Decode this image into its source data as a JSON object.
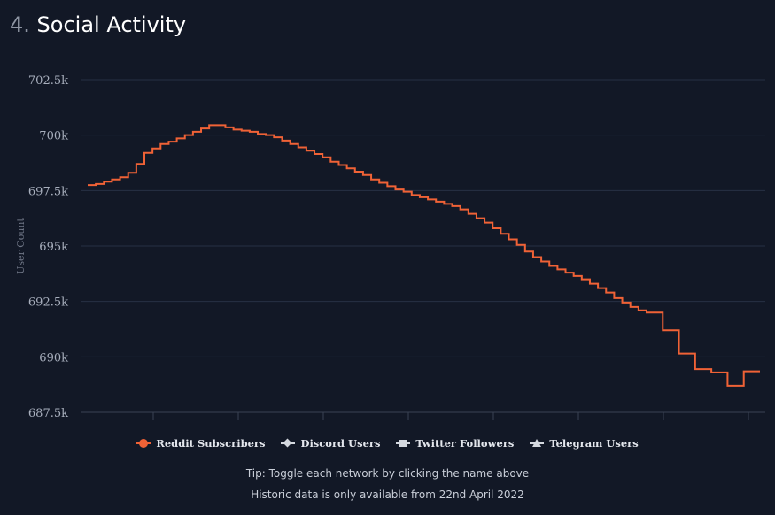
{
  "section": {
    "number": "4.",
    "title": "Social Activity"
  },
  "chart_data": {
    "type": "line",
    "ylabel": "User Count",
    "yticks": [
      "687.5k",
      "690k",
      "692.5k",
      "695k",
      "697.5k",
      "700k",
      "702.5k"
    ],
    "ylim": [
      687500,
      702500
    ],
    "grid": true,
    "legend_position": "bottom-center",
    "series": [
      {
        "name": "Reddit Subscribers",
        "color": "#f06236",
        "marker": "circle",
        "values": [
          697750,
          697800,
          697900,
          698000,
          698100,
          698300,
          698700,
          699200,
          699400,
          699600,
          699700,
          699850,
          700000,
          700150,
          700300,
          700450,
          700450,
          700350,
          700250,
          700200,
          700150,
          700050,
          700000,
          699900,
          699750,
          699600,
          699450,
          699300,
          699150,
          699000,
          698800,
          698650,
          698500,
          698350,
          698200,
          698000,
          697850,
          697700,
          697550,
          697450,
          697300,
          697200,
          697100,
          697000,
          696900,
          696800,
          696650,
          696450,
          696250,
          696050,
          695800,
          695550,
          695300,
          695050,
          694750,
          694500,
          694300,
          694100,
          693950,
          693800,
          693650,
          693500,
          693300,
          693100,
          692900,
          692650,
          692450,
          692250,
          692100,
          692000,
          692000,
          691200,
          691200,
          690150,
          690150,
          689450,
          689450,
          689300,
          689300,
          688700,
          688700,
          689350,
          689350,
          689350
        ]
      },
      {
        "name": "Discord Users",
        "marker": "diamond",
        "values": []
      },
      {
        "name": "Twitter Followers",
        "marker": "square",
        "values": []
      },
      {
        "name": "Telegram Users",
        "marker": "triangle",
        "values": []
      }
    ]
  },
  "notes": {
    "tip": "Tip: Toggle each network by clicking the name above",
    "historic": "Historic data is only available from 22nd April 2022"
  }
}
